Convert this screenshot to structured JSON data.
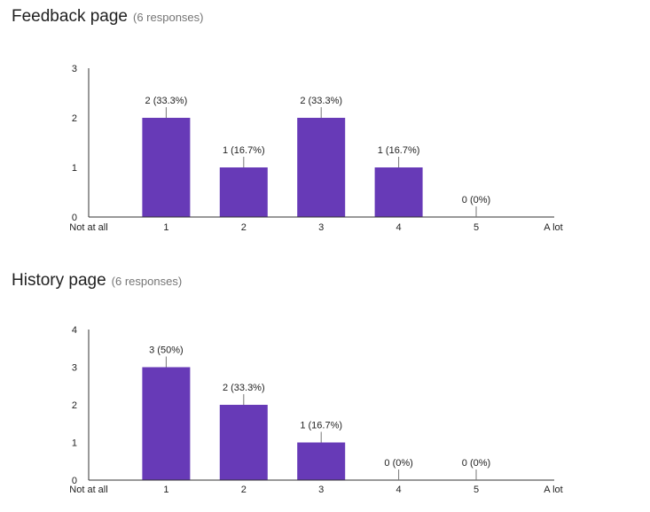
{
  "charts": [
    {
      "title": "Feedback page",
      "responses": "(6 responses)",
      "accent": "#673ab7"
    },
    {
      "title": "History page",
      "responses": "(6 responses)",
      "accent": "#673ab7"
    }
  ],
  "chart_data": [
    {
      "type": "bar",
      "categories": [
        "1",
        "2",
        "3",
        "4",
        "5"
      ],
      "values": [
        2,
        1,
        2,
        1,
        0
      ],
      "data_labels": [
        "2 (33.3%)",
        "1 (16.7%)",
        "2 (33.3%)",
        "1 (16.7%)",
        "0 (0%)"
      ],
      "scale_min_label": "Not at all",
      "scale_max_label": "A lot",
      "yticks": [
        0,
        1,
        2,
        3
      ],
      "ylim": [
        0,
        3
      ],
      "color": "#673ab7",
      "grid": false
    },
    {
      "type": "bar",
      "categories": [
        "1",
        "2",
        "3",
        "4",
        "5"
      ],
      "values": [
        3,
        2,
        1,
        0,
        0
      ],
      "data_labels": [
        "3 (50%)",
        "2 (33.3%)",
        "1 (16.7%)",
        "0 (0%)",
        "0 (0%)"
      ],
      "scale_min_label": "Not at all",
      "scale_max_label": "A lot",
      "yticks": [
        0,
        1,
        2,
        3,
        4
      ],
      "ylim": [
        0,
        4
      ],
      "color": "#673ab7",
      "grid": false
    }
  ]
}
